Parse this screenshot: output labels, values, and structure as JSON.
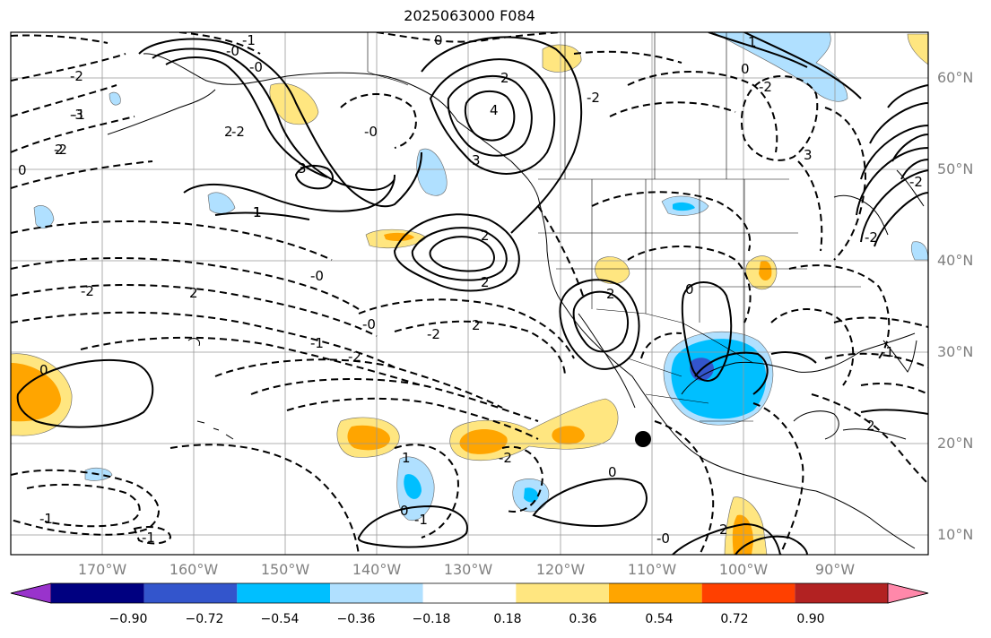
{
  "title": "2025063000 F084",
  "latitude_labels": [
    "60°N",
    "50°N",
    "40°N",
    "30°N",
    "20°N",
    "10°N"
  ],
  "longitude_labels": [
    "170°W",
    "160°W",
    "150°W",
    "140°W",
    "130°W",
    "120°W",
    "110°W",
    "100°W",
    "90°W"
  ],
  "colorbar": {
    "ticks": [
      "−0.90",
      "−0.72",
      "−0.54",
      "−0.36",
      "−0.18",
      "0.18",
      "0.36",
      "0.54",
      "0.72",
      "0.90"
    ],
    "colors": [
      "#9933cc",
      "#000080",
      "#3355cc",
      "#00bfff",
      "#b0e0ff",
      "#ffffff",
      "#ffe680",
      "#ffa500",
      "#ff4000",
      "#b22222",
      "#ff88aa"
    ]
  },
  "contour_labels": [
    "0",
    "2",
    "1",
    "0",
    "-2",
    "-1",
    "-0",
    "3",
    "2",
    "1",
    "-0",
    "-2",
    "-1",
    "2",
    "4",
    "3",
    "-2",
    "2",
    "-0",
    "-2",
    "-2",
    "-1",
    "-0",
    "-2",
    "2",
    "2",
    "2",
    "3",
    "1",
    "-2",
    "-1",
    "2",
    "0",
    "0",
    "1",
    "0",
    "-1",
    "-2",
    "2",
    "-1",
    "-1",
    "0",
    "-2",
    "-3",
    "-2",
    "0",
    "-0",
    "2",
    "1",
    "-0",
    "-2"
  ],
  "fill_colors": {
    "light_blue": "#b0e0ff",
    "blue": "#00bfff",
    "dark_blue": "#3355cc",
    "yellow": "#ffe680",
    "orange": "#ffa500"
  }
}
